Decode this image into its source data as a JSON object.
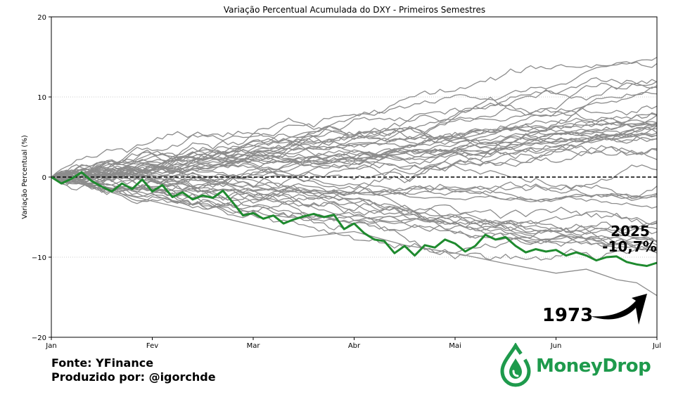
{
  "chart_data": {
    "type": "line",
    "title": "Variação Percentual Acumulada do DXY - Primeiros Semestres",
    "ylabel": "Variação Percentual (%)",
    "xlabel": "",
    "ylim": [
      -20,
      20
    ],
    "yticks": [
      -20,
      -10,
      0,
      10,
      20
    ],
    "xtick_labels": [
      "Jan",
      "Fev",
      "Mar",
      "Abr",
      "Mai",
      "Jun",
      "Jul"
    ],
    "x_unit": "month_index_from_jan",
    "grid": "horizontal dotted",
    "reference_line": {
      "y": 0,
      "style": "dashed"
    },
    "colors": {
      "highlight": "#1e8a2e",
      "others": "#8c8c8c",
      "ref": "#000000"
    },
    "highlight_series": {
      "name": "2025",
      "x": [
        0,
        0.1,
        0.2,
        0.3,
        0.4,
        0.5,
        0.6,
        0.7,
        0.8,
        0.9,
        1.0,
        1.1,
        1.2,
        1.3,
        1.4,
        1.5,
        1.6,
        1.7,
        1.8,
        1.9,
        2.0,
        2.1,
        2.2,
        2.3,
        2.4,
        2.5,
        2.6,
        2.7,
        2.8,
        2.9,
        3.0,
        3.1,
        3.2,
        3.3,
        3.4,
        3.5,
        3.6,
        3.7,
        3.8,
        3.9,
        4.0,
        4.1,
        4.2,
        4.3,
        4.4,
        4.5,
        4.6,
        4.7,
        4.8,
        4.9,
        5.0,
        5.1,
        5.2,
        5.3,
        5.4,
        5.5,
        5.6,
        5.7,
        5.8,
        5.9,
        6.0
      ],
      "values": [
        0,
        -0.8,
        -0.2,
        0.6,
        -0.5,
        -1.2,
        -1.8,
        -0.8,
        -1.5,
        -0.3,
        -1.8,
        -1.0,
        -2.5,
        -1.9,
        -2.8,
        -2.3,
        -2.6,
        -1.7,
        -3.2,
        -4.8,
        -4.5,
        -5.2,
        -4.8,
        -5.8,
        -5.3,
        -4.9,
        -4.6,
        -5.0,
        -4.7,
        -6.5,
        -5.8,
        -7.0,
        -7.8,
        -8.0,
        -9.5,
        -8.6,
        -9.8,
        -8.5,
        -8.8,
        -7.8,
        -8.3,
        -9.3,
        -8.6,
        -7.2,
        -7.8,
        -7.5,
        -8.6,
        -9.4,
        -9.0,
        -9.3,
        -9.1,
        -9.8,
        -9.4,
        -9.8,
        -10.4,
        -10.0,
        -9.9,
        -10.6,
        -10.9,
        -11.1,
        -10.7
      ]
    },
    "background_series_count": 48,
    "annotations": [
      {
        "label": "2025",
        "text": "2025",
        "value": "-10,7%"
      },
      {
        "label": "1973",
        "text": "1973"
      }
    ]
  },
  "footer": {
    "source": "Fonte: YFinance",
    "author": "Produzido por: @igorchde"
  },
  "brand": {
    "name": "MoneyDrop",
    "color": "#1e9a4c"
  }
}
